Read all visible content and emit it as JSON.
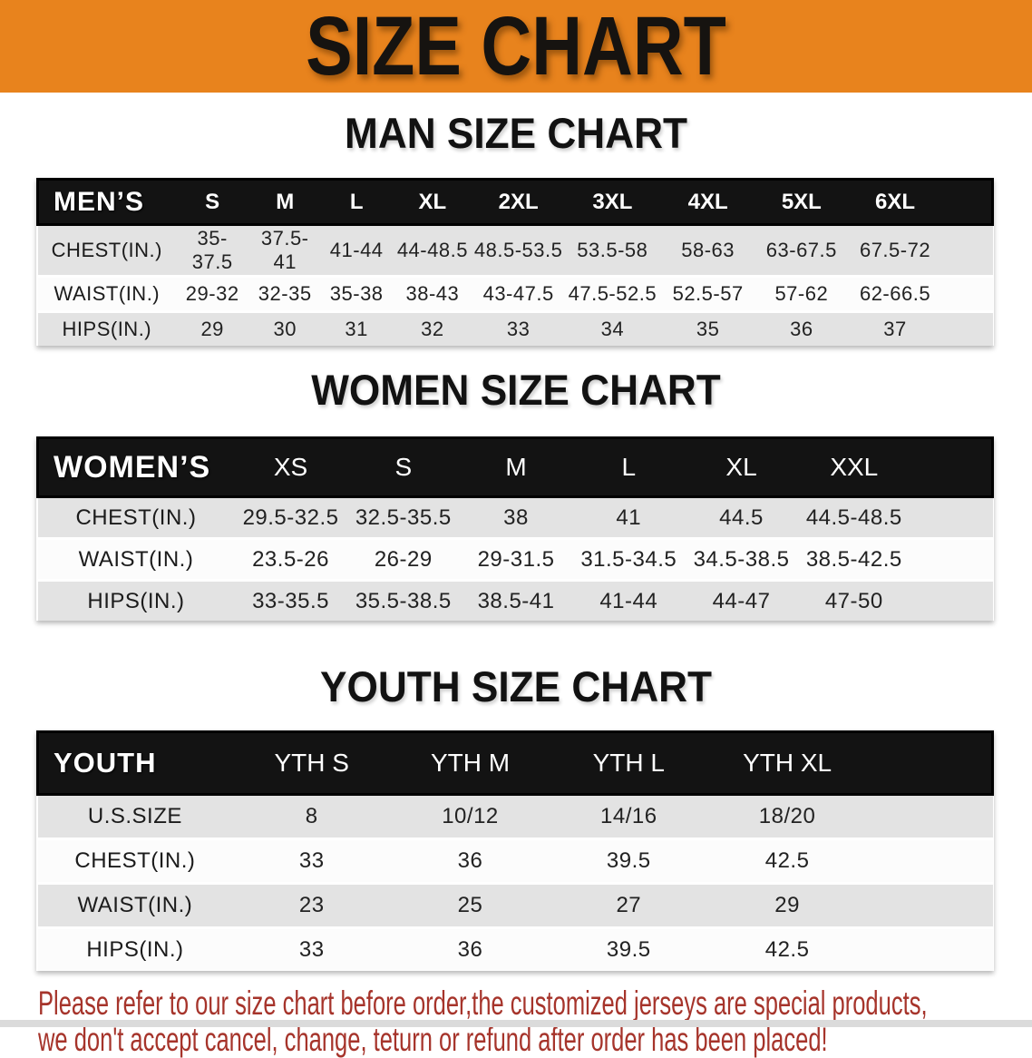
{
  "banner": {
    "title": "SIZE CHART"
  },
  "colors": {
    "banner_bg": "#E8831D",
    "table_header": "#131313",
    "row_gray": "#E3E3E3",
    "disclaimer_red": "#A6342B"
  },
  "chart_data": [
    {
      "type": "table",
      "title": "MAN SIZE CHART",
      "corner_label": "MEN’S",
      "columns": [
        "S",
        "M",
        "L",
        "XL",
        "2XL",
        "3XL",
        "4XL",
        "5XL",
        "6XL"
      ],
      "rows": [
        {
          "label": "CHEST(IN.)",
          "values": [
            "35-37.5",
            "37.5-41",
            "41-44",
            "44-48.5",
            "48.5-53.5",
            "53.5-58",
            "58-63",
            "63-67.5",
            "67.5-72"
          ]
        },
        {
          "label": "WAIST(IN.)",
          "values": [
            "29-32",
            "32-35",
            "35-38",
            "38-43",
            "43-47.5",
            "47.5-52.5",
            "52.5-57",
            "57-62",
            "62-66.5"
          ]
        },
        {
          "label": "HIPS(IN.)",
          "values": [
            "29",
            "30",
            "31",
            "32",
            "33",
            "34",
            "35",
            "36",
            "37"
          ]
        }
      ]
    },
    {
      "type": "table",
      "title": "WOMEN SIZE CHART",
      "corner_label": "WOMEN’S",
      "columns": [
        "XS",
        "S",
        "M",
        "L",
        "XL",
        "XXL"
      ],
      "rows": [
        {
          "label": "CHEST(IN.)",
          "values": [
            "29.5-32.5",
            "32.5-35.5",
            "38",
            "41",
            "44.5",
            "44.5-48.5"
          ]
        },
        {
          "label": "WAIST(IN.)",
          "values": [
            "23.5-26",
            "26-29",
            "29-31.5",
            "31.5-34.5",
            "34.5-38.5",
            "38.5-42.5"
          ]
        },
        {
          "label": "HIPS(IN.)",
          "values": [
            "33-35.5",
            "35.5-38.5",
            "38.5-41",
            "41-44",
            "44-47",
            "47-50"
          ]
        }
      ]
    },
    {
      "type": "table",
      "title": "YOUTH SIZE CHART",
      "corner_label": "YOUTH",
      "columns": [
        "YTH S",
        "YTH M",
        "YTH L",
        "YTH XL"
      ],
      "rows": [
        {
          "label": "U.S.SIZE",
          "values": [
            "8",
            "10/12",
            "14/16",
            "18/20"
          ]
        },
        {
          "label": "CHEST(IN.)",
          "values": [
            "33",
            "36",
            "39.5",
            "42.5"
          ]
        },
        {
          "label": "WAIST(IN.)",
          "values": [
            "23",
            "25",
            "27",
            "29"
          ]
        },
        {
          "label": "HIPS(IN.)",
          "values": [
            "33",
            "36",
            "39.5",
            "42.5"
          ]
        }
      ]
    }
  ],
  "disclaimer": {
    "line1": "Please refer to our size chart before order,the customized jerseys are special products,",
    "line2": "we don't accept cancel, change, teturn or refund after order has been placed!"
  }
}
